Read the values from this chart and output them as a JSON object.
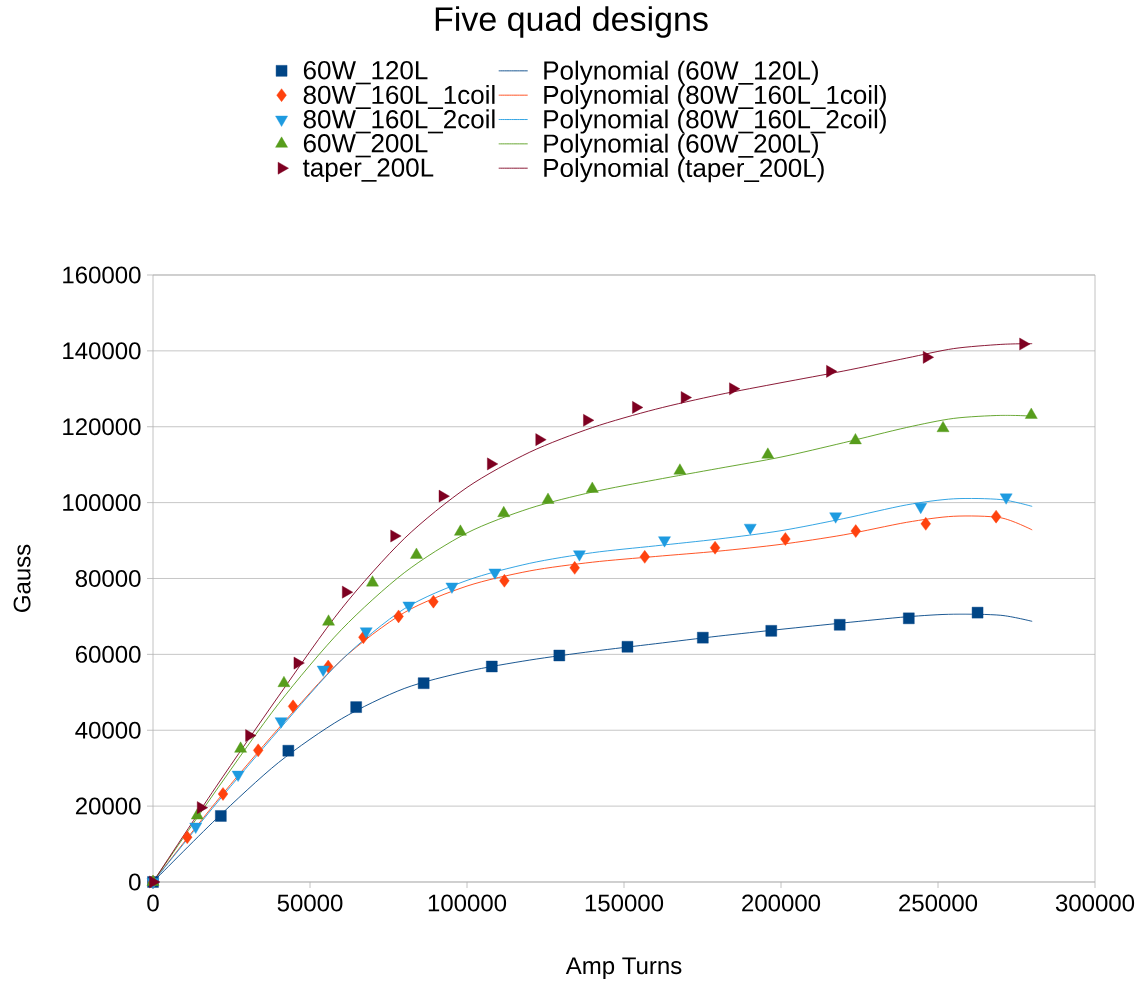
{
  "chart_data": {
    "type": "scatter",
    "title": "Five quad designs",
    "xlabel": "Amp Turns",
    "ylabel": "Gauss",
    "xlim": [
      0,
      300000
    ],
    "ylim": [
      0,
      160000
    ],
    "xticks": [
      0,
      50000,
      100000,
      150000,
      200000,
      250000,
      300000
    ],
    "yticks": [
      0,
      20000,
      40000,
      60000,
      80000,
      100000,
      120000,
      140000,
      160000
    ],
    "grid": "y",
    "legend": "top",
    "series": [
      {
        "name": "60W_120L",
        "marker": "square",
        "color": "#004586",
        "x": [
          0,
          21600,
          43100,
          64700,
          86200,
          107900,
          129400,
          151100,
          175100,
          196900,
          218700,
          240700,
          262600
        ],
        "values": [
          0,
          17400,
          34600,
          46100,
          52400,
          56800,
          59700,
          62000,
          64400,
          66200,
          67800,
          69500,
          71000
        ]
      },
      {
        "name": "Polynomial (60W_120L)",
        "type": "line",
        "marker": "none",
        "color": "#004586",
        "x": [
          0,
          20000,
          40000,
          60000,
          80000,
          100000,
          120000,
          140000,
          160000,
          180000,
          200000,
          220000,
          240000,
          255000,
          270000,
          280000
        ],
        "values": [
          0,
          16500,
          31500,
          43000,
          51000,
          55500,
          58500,
          60800,
          62800,
          64800,
          66600,
          68300,
          69900,
          70600,
          70300,
          68700
        ]
      },
      {
        "name": "80W_160L_1coil",
        "marker": "diamond",
        "color": "#ff420e",
        "x": [
          0,
          10900,
          22300,
          33500,
          44600,
          55800,
          67000,
          78200,
          89300,
          111900,
          134300,
          156600,
          179000,
          201400,
          223800,
          246100,
          268500
        ],
        "values": [
          0,
          11800,
          23200,
          34700,
          46300,
          56800,
          64500,
          70000,
          73900,
          79400,
          82800,
          85700,
          88100,
          90400,
          92500,
          94400,
          96300
        ]
      },
      {
        "name": "Polynomial (80W_160L_1coil)",
        "type": "line",
        "marker": "none",
        "color": "#ff420e",
        "x": [
          0,
          20000,
          40000,
          60000,
          80000,
          100000,
          120000,
          140000,
          160000,
          180000,
          200000,
          220000,
          240000,
          255000,
          270000,
          280000
        ],
        "values": [
          0,
          21000,
          40500,
          58500,
          71000,
          78000,
          82000,
          84300,
          85800,
          87200,
          89000,
          91500,
          94800,
          96400,
          96000,
          92800
        ]
      },
      {
        "name": "80W_160L_2coil",
        "marker": "triangle-down",
        "color": "#1e9be0",
        "x": [
          0,
          13600,
          27100,
          40800,
          54200,
          67900,
          81500,
          95200,
          108900,
          135800,
          162900,
          190200,
          217400,
          244500,
          271700
        ],
        "values": [
          0,
          14600,
          28300,
          42400,
          56000,
          66100,
          72900,
          77900,
          81600,
          86400,
          90100,
          93400,
          96400,
          98900,
          101400
        ]
      },
      {
        "name": "Polynomial (80W_160L_2coil)",
        "type": "line",
        "marker": "none",
        "color": "#1e9be0",
        "x": [
          0,
          20000,
          40000,
          60000,
          80000,
          100000,
          120000,
          140000,
          160000,
          180000,
          200000,
          220000,
          240000,
          255000,
          270000,
          280000
        ],
        "values": [
          0,
          20500,
          40000,
          58500,
          72000,
          79500,
          84000,
          86800,
          88600,
          90400,
          92600,
          95800,
          99400,
          101000,
          100800,
          99000
        ]
      },
      {
        "name": "60W_200L",
        "marker": "triangle",
        "color": "#579d1c",
        "x": [
          0,
          14100,
          27900,
          41700,
          55900,
          69900,
          83900,
          97900,
          111700,
          125800,
          139900,
          167800,
          195800,
          223700,
          251600,
          279700
        ],
        "values": [
          0,
          17500,
          35100,
          52400,
          68600,
          78900,
          86200,
          92300,
          97200,
          100700,
          103600,
          108400,
          112600,
          116400,
          119600,
          123100
        ]
      },
      {
        "name": "Polynomial (60W_200L)",
        "type": "line",
        "marker": "none",
        "color": "#579d1c",
        "x": [
          0,
          20000,
          40000,
          60000,
          80000,
          100000,
          120000,
          140000,
          160000,
          180000,
          200000,
          220000,
          240000,
          255000,
          270000,
          280000
        ],
        "values": [
          0,
          24000,
          47000,
          66500,
          81500,
          92000,
          98500,
          102800,
          106000,
          109000,
          112000,
          115800,
          119800,
          122200,
          123000,
          122800
        ]
      },
      {
        "name": "taper_200L",
        "marker": "triangle-right",
        "color": "#7e0021",
        "x": [
          0,
          15200,
          30600,
          46000,
          61400,
          76800,
          92200,
          107600,
          123000,
          138200,
          153800,
          169300,
          184700,
          215600,
          246400,
          277100
        ],
        "values": [
          0,
          19600,
          38600,
          57700,
          76400,
          91200,
          101700,
          110200,
          116600,
          121700,
          125100,
          127700,
          130000,
          134600,
          138300,
          141800
        ]
      },
      {
        "name": "Polynomial (taper_200L)",
        "type": "line",
        "marker": "none",
        "color": "#7e0021",
        "x": [
          0,
          20000,
          40000,
          60000,
          80000,
          100000,
          120000,
          140000,
          160000,
          180000,
          200000,
          220000,
          240000,
          255000,
          270000,
          280000
        ],
        "values": [
          0,
          25000,
          49000,
          72000,
          90500,
          104000,
          113300,
          119800,
          124600,
          128400,
          131600,
          134700,
          138100,
          140600,
          141700,
          141900
        ]
      }
    ]
  }
}
